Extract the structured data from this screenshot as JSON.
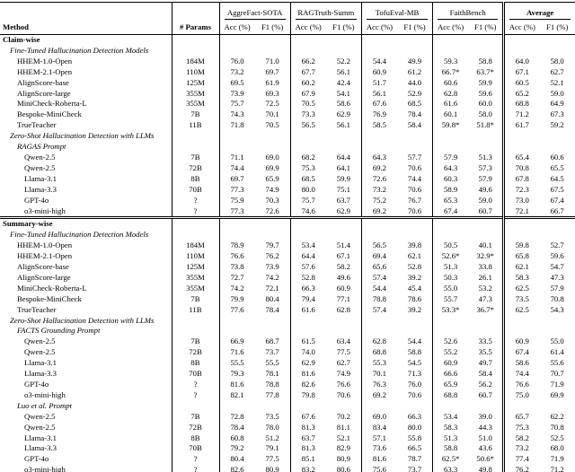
{
  "table": {
    "col1_header": "Method",
    "col2_header": "# Params",
    "subheaders": [
      "Acc (%)",
      "F1 (%)"
    ],
    "groups": [
      {
        "label": "AggreFact-SOTA",
        "bold": false
      },
      {
        "label": "RAGTruth-Summ",
        "bold": false
      },
      {
        "label": "TofuEval-MB",
        "bold": false
      },
      {
        "label": "FaithBench",
        "bold": false
      },
      {
        "label": "Average",
        "bold": true
      }
    ],
    "rows": [
      {
        "type": "section",
        "label": "Claim-wise",
        "indent": 0
      },
      {
        "type": "subsection",
        "label": "Fine-Tuned Hallucination Detection Models",
        "indent": 1
      },
      {
        "type": "data",
        "indent": 2,
        "method": "HHEM-1.0-Open",
        "params": "184M",
        "values": [
          "76.0",
          "71.0",
          "66.2",
          "52.2",
          "54.4",
          "49.9",
          "59.3",
          "58.8",
          "64.0",
          "58.0"
        ]
      },
      {
        "type": "data",
        "indent": 2,
        "method": "HHEM-2.1-Open",
        "params": "110M",
        "values": [
          "73.2",
          "69.7",
          "67.7",
          "56.1",
          "60.9",
          "61.2",
          "66.7*",
          "63.7*",
          "67.1",
          "62.7"
        ]
      },
      {
        "type": "data",
        "indent": 2,
        "method": "AlignScore-base",
        "params": "125M",
        "values": [
          "69.5",
          "61.9",
          "60.2",
          "42.4",
          "51.7",
          "44.0",
          "60.6",
          "59.9",
          "60.5",
          "52.1"
        ]
      },
      {
        "type": "data",
        "indent": 2,
        "method": "AlignScore-large",
        "params": "355M",
        "values": [
          "73.9",
          "69.3",
          "67.9",
          "54.1",
          "56.1",
          "52.9",
          "62.8",
          "59.6",
          "65.2",
          "59.0"
        ]
      },
      {
        "type": "data",
        "indent": 2,
        "method": "MiniCheck-Roberta-L",
        "params": "355M",
        "values": [
          "75.7",
          "72.5",
          "70.5",
          "58.6",
          "67.6",
          "68.5",
          "61.6",
          "60.0",
          "68.8",
          "64.9"
        ]
      },
      {
        "type": "data",
        "indent": 2,
        "method": "Bespoke-MiniCheck",
        "params": "7B",
        "values": [
          "74.3",
          "70.1",
          "73.3",
          "62.9",
          "76.9",
          "78.4",
          "60.1",
          "58.0",
          "71.2",
          "67.3"
        ]
      },
      {
        "type": "data",
        "indent": 2,
        "method": "TrueTeacher",
        "params": "11B",
        "values": [
          "71.8",
          "70.5",
          "56.5",
          "56.1",
          "58.5",
          "58.4",
          "59.8*",
          "51.8*",
          "61.7",
          "59.2"
        ]
      },
      {
        "type": "subsection",
        "label": "Zero-Shot Hallucination Detection with LLMs",
        "indent": 1
      },
      {
        "type": "subsection",
        "label": "RAGAS Prompt",
        "indent": 2
      },
      {
        "type": "data",
        "indent": 3,
        "method": "Qwen-2.5",
        "params": "7B",
        "values": [
          "71.1",
          "69.0",
          "68.2",
          "64.4",
          "64.3",
          "57.7",
          "57.9",
          "51.3",
          "65.4",
          "60.6"
        ]
      },
      {
        "type": "data",
        "indent": 3,
        "method": "Qwen-2.5",
        "params": "72B",
        "values": [
          "74.4",
          "69.9",
          "75.3",
          "64.1",
          "69.2",
          "70.6",
          "64.3",
          "57.3",
          "70.8",
          "65.5"
        ]
      },
      {
        "type": "data",
        "indent": 3,
        "method": "Llama-3.1",
        "params": "8B",
        "values": [
          "69.7",
          "65.9",
          "68.5",
          "59.9",
          "72.6",
          "74.4",
          "60.3",
          "57.9",
          "67.8",
          "64.5"
        ]
      },
      {
        "type": "data",
        "indent": 3,
        "method": "Llama-3.3",
        "params": "70B",
        "values": [
          "77.3",
          "74.9",
          "80.0",
          "75.1",
          "73.2",
          "70.6",
          "58.9",
          "49.6",
          "72.3",
          "67.5"
        ]
      },
      {
        "type": "data",
        "indent": 3,
        "method": "GPT-4o",
        "params": "?",
        "values": [
          "75.9",
          "70.3",
          "75.7",
          "63.7",
          "75.2",
          "76.7",
          "65.3",
          "59.0",
          "73.0",
          "67.4"
        ]
      },
      {
        "type": "data",
        "indent": 3,
        "method": "o3-mini-high",
        "params": "?",
        "values": [
          "77.3",
          "72.6",
          "74.6",
          "62.9",
          "69.2",
          "70.6",
          "67.4",
          "60.7",
          "72.1",
          "66.7"
        ]
      },
      {
        "type": "section",
        "label": "Summary-wise",
        "indent": 0,
        "divider": true
      },
      {
        "type": "subsection",
        "label": "Fine-Tuned Hallucination Detection Models",
        "indent": 1
      },
      {
        "type": "data",
        "indent": 2,
        "method": "HHEM-1.0-Open",
        "params": "184M",
        "values": [
          "78.9",
          "79.7",
          "53.4",
          "51.4",
          "56.5",
          "39.8",
          "50.5",
          "40.1",
          "59.8",
          "52.7"
        ]
      },
      {
        "type": "data",
        "indent": 2,
        "method": "HHEM-2.1-Open",
        "params": "110M",
        "values": [
          "76.6",
          "76.2",
          "64.4",
          "67.1",
          "69.4",
          "62.1",
          "52.6*",
          "32.9*",
          "65.8",
          "59.6"
        ]
      },
      {
        "type": "data",
        "indent": 2,
        "method": "AlignScore-base",
        "params": "125M",
        "values": [
          "73.8",
          "73.9",
          "57.6",
          "58.2",
          "65.6",
          "52.8",
          "51.3",
          "33.8",
          "62.1",
          "54.7"
        ]
      },
      {
        "type": "data",
        "indent": 2,
        "method": "AlignScore-large",
        "params": "355M",
        "values": [
          "72.7",
          "74.2",
          "52.8",
          "49.6",
          "57.4",
          "39.2",
          "50.3",
          "26.1",
          "58.3",
          "47.3"
        ]
      },
      {
        "type": "data",
        "indent": 2,
        "method": "MiniCheck-Roberta-L",
        "params": "355M",
        "values": [
          "74.2",
          "72.1",
          "66.3",
          "60.9",
          "54.4",
          "45.4",
          "55.0",
          "53.2",
          "62.5",
          "57.9"
        ]
      },
      {
        "type": "data",
        "indent": 2,
        "method": "Bespoke-MiniCheck",
        "params": "7B",
        "values": [
          "79.9",
          "80.4",
          "79.4",
          "77.1",
          "78.8",
          "78.6",
          "55.7",
          "47.3",
          "73.5",
          "70.8"
        ]
      },
      {
        "type": "data",
        "indent": 2,
        "method": "TrueTeacher",
        "params": "11B",
        "values": [
          "77.6",
          "78.4",
          "61.6",
          "62.8",
          "57.4",
          "39.2",
          "53.3*",
          "36.7*",
          "62.5",
          "54.3"
        ]
      },
      {
        "type": "subsection",
        "label": "Zero-Shot Hallucination Detection with LLMs",
        "indent": 1
      },
      {
        "type": "subsection",
        "label": "FACTS Grounding Prompt",
        "indent": 2
      },
      {
        "type": "data",
        "indent": 3,
        "method": "Qwen-2.5",
        "params": "7B",
        "values": [
          "66.9",
          "68.7",
          "61.5",
          "63.4",
          "62.8",
          "54.4",
          "52.6",
          "33.5",
          "60.9",
          "55.0"
        ]
      },
      {
        "type": "data",
        "indent": 3,
        "method": "Qwen-2.5",
        "params": "72B",
        "values": [
          "71.6",
          "73.7",
          "74.0",
          "77.5",
          "68.8",
          "58.8",
          "55.2",
          "35.5",
          "67.4",
          "61.4"
        ]
      },
      {
        "type": "data",
        "indent": 3,
        "method": "Llama-3.1",
        "params": "8B",
        "values": [
          "55.5",
          "55.5",
          "62.9",
          "62.7",
          "55.3",
          "54.5",
          "60.9",
          "49.7",
          "58.6",
          "55.6"
        ]
      },
      {
        "type": "data",
        "indent": 3,
        "method": "Llama-3.3",
        "params": "70B",
        "values": [
          "79.3",
          "78.1",
          "81.6",
          "74.9",
          "70.1",
          "71.3",
          "66.6",
          "58.4",
          "74.4",
          "70.7"
        ]
      },
      {
        "type": "data",
        "indent": 3,
        "method": "GPT-4o",
        "params": "?",
        "values": [
          "81.6",
          "78.8",
          "82.6",
          "76.6",
          "76.3",
          "76.0",
          "65.9",
          "56.2",
          "76.6",
          "71.9"
        ]
      },
      {
        "type": "data",
        "indent": 3,
        "method": "o3-mini-high",
        "params": "?",
        "values": [
          "82.1",
          "77.8",
          "79.8",
          "70.6",
          "69.2",
          "70.6",
          "68.8",
          "60.7",
          "75.0",
          "69.9"
        ]
      },
      {
        "type": "subsection",
        "label": "Luo et al. Prompt",
        "indent": 2
      },
      {
        "type": "data",
        "indent": 3,
        "method": "Qwen-2.5",
        "params": "7B",
        "values": [
          "72.8",
          "73.5",
          "67.6",
          "70.2",
          "69.0",
          "66.3",
          "53.4",
          "39.0",
          "65.7",
          "62.2"
        ]
      },
      {
        "type": "data",
        "indent": 3,
        "method": "Qwen-2.5",
        "params": "72B",
        "values": [
          "78.4",
          "78.0",
          "81.3",
          "81.1",
          "83.4",
          "80.0",
          "58.3",
          "44.3",
          "75.3",
          "70.8"
        ]
      },
      {
        "type": "data",
        "indent": 3,
        "method": "Llama-3.1",
        "params": "8B",
        "values": [
          "60.8",
          "51.2",
          "63.7",
          "52.1",
          "57.1",
          "55.8",
          "51.3",
          "51.0",
          "58.2",
          "52.5"
        ]
      },
      {
        "type": "data",
        "indent": 3,
        "method": "Llama-3.3",
        "params": "70B",
        "values": [
          "79.2",
          "79.1",
          "81.3",
          "82.9",
          "73.6",
          "66.5",
          "58.8",
          "43.6",
          "73.2",
          "68.0"
        ]
      },
      {
        "type": "data",
        "indent": 3,
        "method": "GPT-4o",
        "params": "?",
        "values": [
          "80.4",
          "77.5",
          "85.1",
          "80.9",
          "81.6",
          "78.7",
          "62.5*",
          "50.6*",
          "77.4",
          "71.9"
        ]
      },
      {
        "type": "data",
        "indent": 3,
        "method": "o3-mini-high",
        "params": "?",
        "values": [
          "82.6",
          "80.9",
          "83.2",
          "80.6",
          "75.6",
          "73.7",
          "63.3",
          "49.8",
          "76.2",
          "71.2"
        ]
      }
    ]
  }
}
